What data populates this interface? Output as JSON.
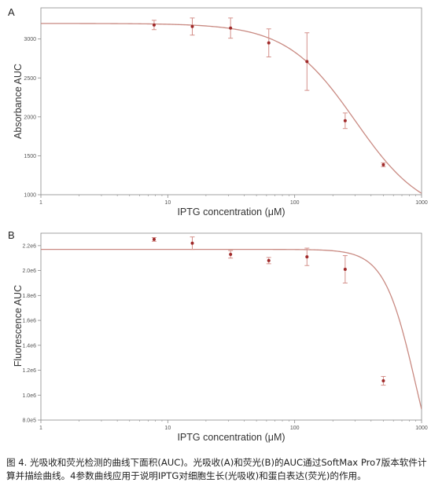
{
  "chart_data": [
    {
      "type": "scatter",
      "panel": "A",
      "title": "",
      "xlabel": "IPTG concentration (μM)",
      "ylabel": "Absorbance AUC",
      "xscale": "log",
      "xlim": [
        1,
        1000
      ],
      "ylim": [
        1000,
        3400
      ],
      "x_ticks": [
        1,
        10,
        100,
        1000
      ],
      "x_tick_labels": [
        "1",
        "10",
        "100",
        "1000"
      ],
      "y_ticks": [
        1000,
        1500,
        2000,
        2500,
        3000
      ],
      "y_tick_labels": [
        "1000",
        "1500",
        "2000",
        "2500",
        "3000"
      ],
      "grid": false,
      "legend": "none",
      "x": [
        7.8,
        15.6,
        31.25,
        62.5,
        125,
        250,
        500
      ],
      "y": [
        3180,
        3160,
        3140,
        2950,
        2710,
        1950,
        1385
      ],
      "error": [
        60,
        110,
        130,
        180,
        370,
        100,
        25
      ],
      "curve": {
        "model": "4PL",
        "top": 3200,
        "bottom": 700,
        "ec50": 300,
        "hill": 1.6
      },
      "marker_color": "#a02a2a",
      "error_color": "#d4908a",
      "curve_color": "#c98a82"
    },
    {
      "type": "scatter",
      "panel": "B",
      "title": "",
      "xlabel": "IPTG concentration (μM)",
      "ylabel": "Fluorescence AUC",
      "xscale": "log",
      "xlim": [
        1,
        1000
      ],
      "ylim": [
        800000,
        2300000
      ],
      "x_ticks": [
        1,
        10,
        100,
        1000
      ],
      "x_tick_labels": [
        "1",
        "10",
        "100",
        "1000"
      ],
      "y_ticks": [
        800000,
        1000000,
        1200000,
        1400000,
        1600000,
        1800000,
        2000000,
        2200000
      ],
      "y_tick_labels": [
        "8.0e5",
        "1.0e6",
        "1.2e6",
        "1.4e6",
        "1.6e6",
        "1.8e6",
        "2.0e6",
        "2.2e6"
      ],
      "grid": false,
      "legend": "none",
      "x": [
        7.8,
        15.6,
        31.25,
        62.5,
        125,
        250,
        500
      ],
      "y": [
        2250000,
        2220000,
        2130000,
        2080000,
        2110000,
        2010000,
        1115000
      ],
      "error": [
        15000,
        50000,
        30000,
        25000,
        70000,
        110000,
        35000
      ],
      "curve": {
        "model": "4PL",
        "top": 2170000,
        "bottom": 0,
        "ec50": 900,
        "hill": 3.5
      },
      "marker_color": "#a02a2a",
      "error_color": "#d4908a",
      "curve_color": "#c98a82"
    }
  ],
  "caption": "图 4. 光吸收和荧光检测的曲线下面积(AUC)。光吸收(A)和荧光(B)的AUC通过SoftMax Pro7版本软件计算并描绘曲线。4参数曲线应用于说明IPTG对细胞生长(光吸收)和蛋白表达(荧光)的作用。"
}
